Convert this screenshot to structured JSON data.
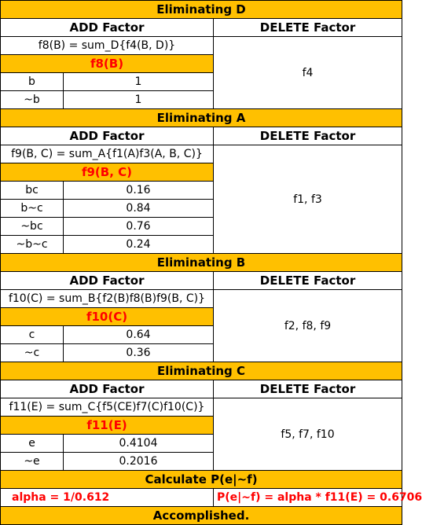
{
  "labels": {
    "add_factor": "ADD Factor",
    "delete_factor": "DELETE Factor"
  },
  "sections": [
    {
      "title": "Eliminating D",
      "formula": "f8(B) = sum_D{f4(B, D)}",
      "factor": "f8(B)",
      "rows": [
        {
          "label": "b",
          "value": "1"
        },
        {
          "label": "~b",
          "value": "1"
        }
      ],
      "deleted": "f4"
    },
    {
      "title": "Eliminating A",
      "formula": "f9(B, C) = sum_A{f1(A)f3(A, B, C)}",
      "factor": "f9(B, C)",
      "rows": [
        {
          "label": "bc",
          "value": "0.16"
        },
        {
          "label": "b~c",
          "value": "0.84"
        },
        {
          "label": "~bc",
          "value": "0.76"
        },
        {
          "label": "~b~c",
          "value": "0.24"
        }
      ],
      "deleted": "f1, f3"
    },
    {
      "title": "Eliminating B",
      "formula": "f10(C) = sum_B{f2(B)f8(B)f9(B, C)}",
      "factor": "f10(C)",
      "rows": [
        {
          "label": "c",
          "value": "0.64"
        },
        {
          "label": "~c",
          "value": "0.36"
        }
      ],
      "deleted": "f2, f8, f9"
    },
    {
      "title": "Eliminating C",
      "formula": "f11(E) = sum_C{f5(CE)f7(C)f10(C)}",
      "factor": "f11(E)",
      "rows": [
        {
          "label": "e",
          "value": "0.4104"
        },
        {
          "label": "~e",
          "value": "0.2016"
        }
      ],
      "deleted": "f5, f7, f10"
    }
  ],
  "final": {
    "title": "Calculate P(e|~f)",
    "alpha": "alpha = 1/0.612",
    "result": "P(e|~f) = alpha * f11(E) = 0.6706",
    "status": "Accomplished."
  },
  "colors": {
    "header_fill": "#ffc000",
    "highlight_text": "#ff0000",
    "border": "#000000"
  }
}
